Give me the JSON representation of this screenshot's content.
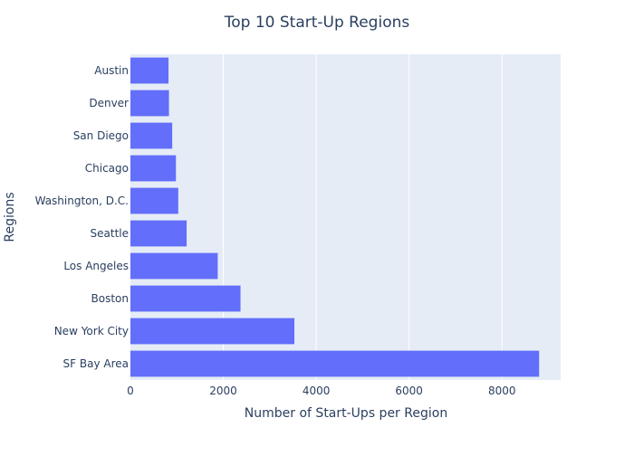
{
  "chart_data": {
    "type": "bar",
    "orientation": "horizontal",
    "title": "Top 10 Start-Up Regions",
    "xlabel": "Number of Start-Ups per Region",
    "ylabel": "Regions",
    "categories": [
      "SF Bay Area",
      "New York City",
      "Boston",
      "Los Angeles",
      "Seattle",
      "Washington, D.C.",
      "Chicago",
      "San Diego",
      "Denver",
      "Austin"
    ],
    "values": [
      8800,
      3530,
      2370,
      1880,
      1210,
      1030,
      980,
      900,
      830,
      820
    ],
    "xlim": [
      0,
      9263
    ],
    "xticks": [
      0,
      2000,
      4000,
      6000,
      8000
    ],
    "xtick_labels": [
      "0",
      "2000",
      "4000",
      "6000",
      "8000"
    ],
    "grid": true,
    "colors": {
      "bar": "#636efa",
      "plot_bg": "#e5ecf6",
      "grid": "#ffffff",
      "text": "#2a3f5f"
    }
  }
}
